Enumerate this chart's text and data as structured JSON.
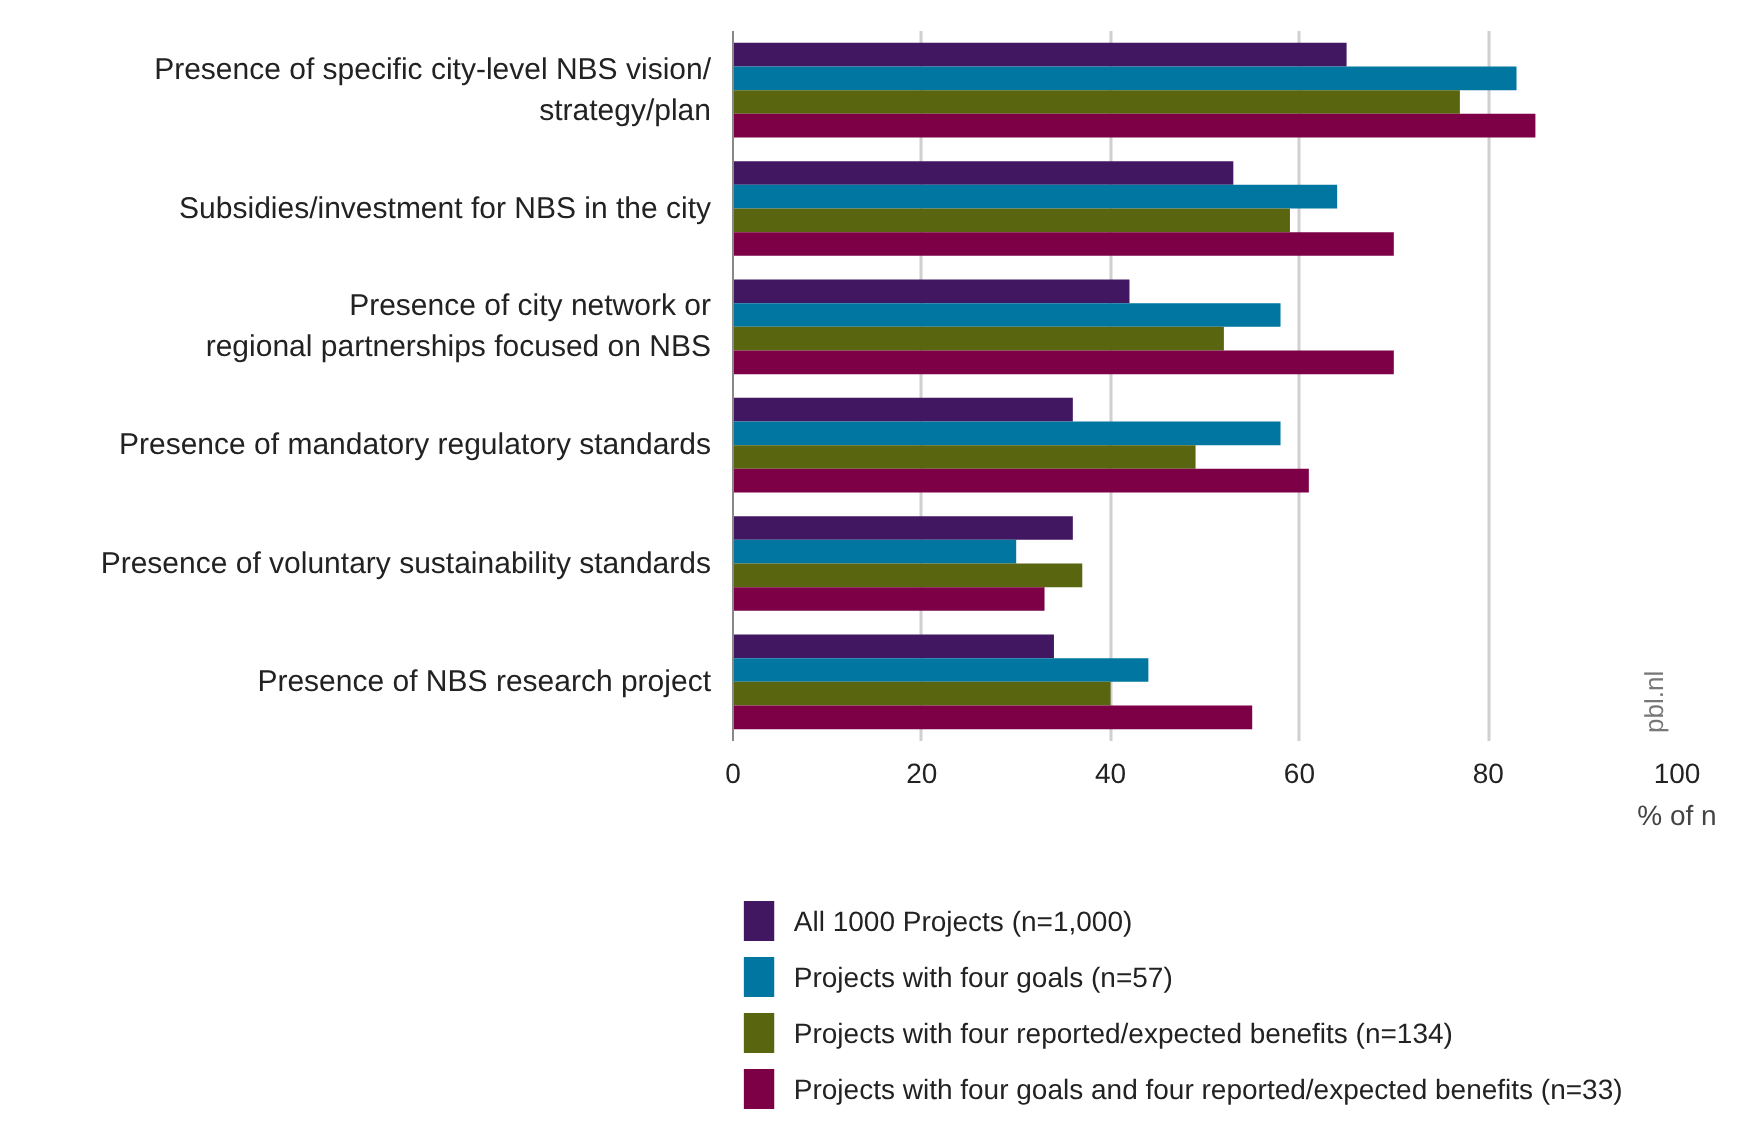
{
  "chart_data": {
    "type": "bar",
    "orientation": "horizontal",
    "categories": [
      "Presence of specific city-level NBS vision/\nstrategy/plan",
      "Subsidies/investment for NBS in the city",
      "Presence of city network or\nregional partnerships focused on NBS",
      "Presence of mandatory regulatory standards",
      "Presence of voluntary sustainability standards",
      "Presence of NBS research project"
    ],
    "series": [
      {
        "name": "All 1000 Projects (n=1,000)",
        "color": "#421761",
        "values": [
          65,
          53,
          42,
          36,
          36,
          34
        ]
      },
      {
        "name": "Projects with four goals (n=57)",
        "color": "#0076a1",
        "values": [
          83,
          64,
          58,
          58,
          30,
          44
        ]
      },
      {
        "name": "Projects with four reported/expected benefits (n=134)",
        "color": "#59650f",
        "values": [
          77,
          59,
          52,
          49,
          37,
          40
        ]
      },
      {
        "name": "Projects with four goals and four reported/expected benefits (n=33)",
        "color": "#7d0047",
        "values": [
          85,
          70,
          70,
          61,
          33,
          55
        ]
      }
    ],
    "xlim": [
      0,
      100
    ],
    "xticks": [
      0,
      20,
      40,
      60,
      80,
      100
    ],
    "xlabel": "% of n",
    "grid": "x",
    "legend": "bottom",
    "annotations": [
      "pbl.nl"
    ]
  }
}
